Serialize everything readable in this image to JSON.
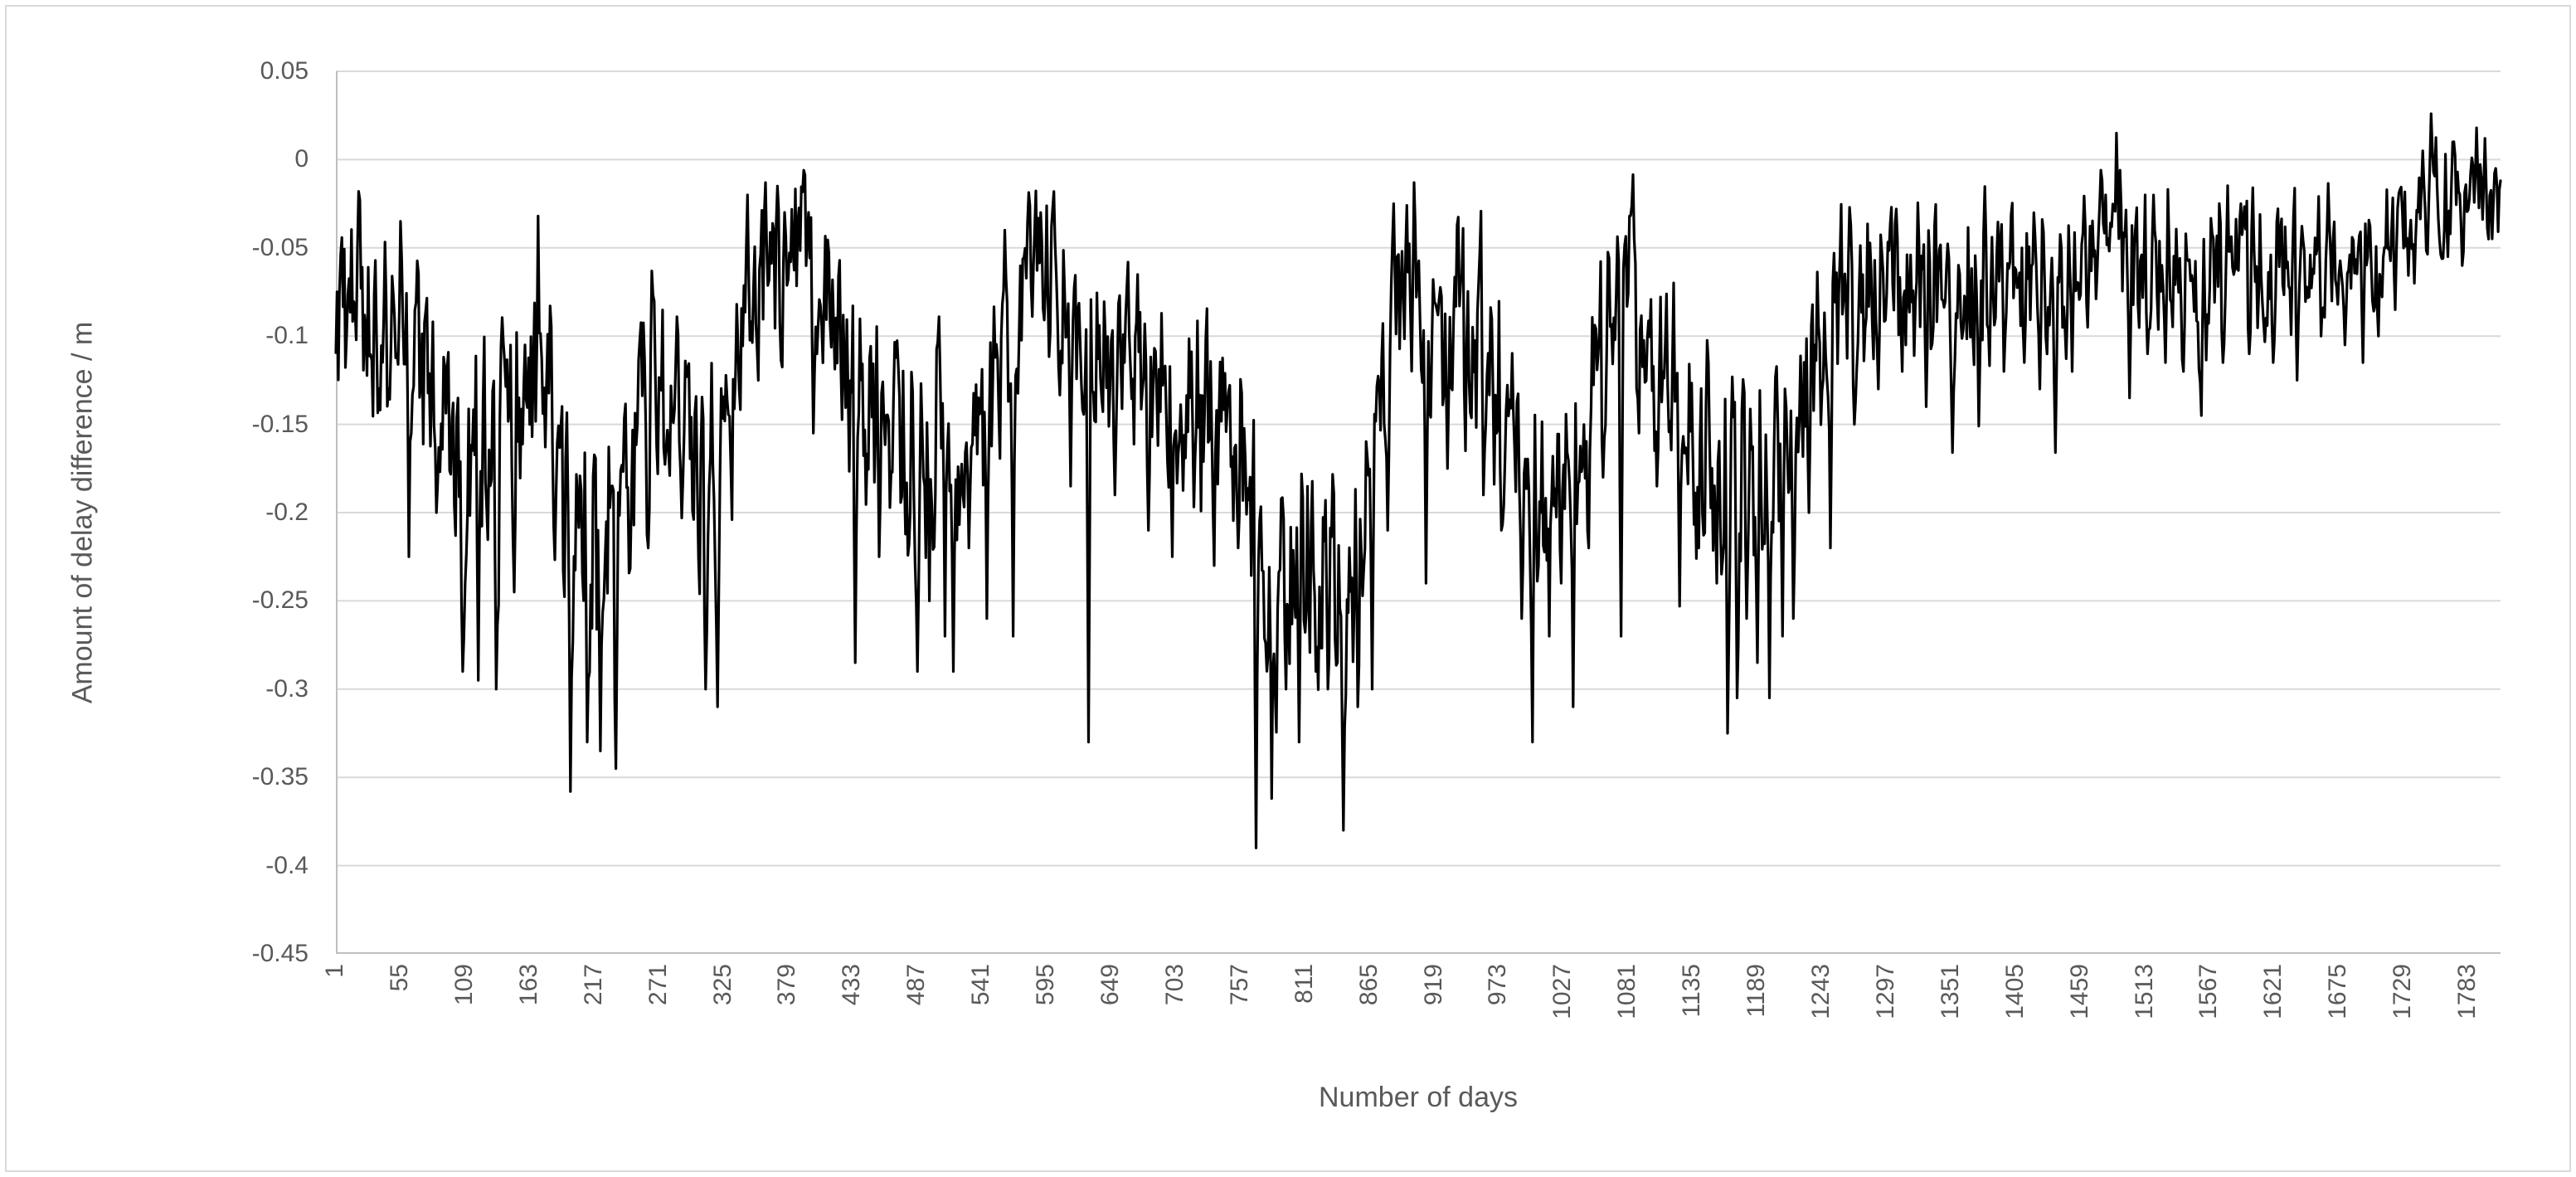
{
  "chart": {
    "y_axis": {
      "title": "Amount of delay difference / m",
      "tick_labels": [
        "0.05",
        "0",
        "-0.05",
        "-0.1",
        "-0.15",
        "-0.2",
        "-0.25",
        "-0.3",
        "-0.35",
        "-0.4",
        "-0.45"
      ],
      "tick_values": [
        0.05,
        0,
        -0.05,
        -0.1,
        -0.15,
        -0.2,
        -0.25,
        -0.3,
        -0.35,
        -0.4,
        -0.45
      ],
      "max": 0.05,
      "min": -0.45
    },
    "x_axis": {
      "title": "Number of days",
      "tick_labels": [
        "1",
        "55",
        "109",
        "163",
        "217",
        "271",
        "325",
        "379",
        "433",
        "487",
        "541",
        "595",
        "649",
        "703",
        "757",
        "811",
        "865",
        "919",
        "973",
        "1027",
        "1081",
        "1135",
        "1189",
        "1243",
        "1297",
        "1351",
        "1405",
        "1459",
        "1513",
        "1567",
        "1621",
        "1675",
        "1729",
        "1783"
      ],
      "tick_start": 1,
      "tick_step": 54
    },
    "style": {
      "series_color": "#000000",
      "gridline_color": "#d9d9d9",
      "axis_line_color": "#bfbfbf",
      "tick_text_color": "#595959",
      "frame_border_color": "#d9d9d9",
      "background": "#ffffff"
    }
  },
  "chart_data": {
    "type": "line",
    "title": "",
    "xlabel": "Number of days",
    "ylabel": "Amount of delay difference / m",
    "x_range": [
      1,
      1810
    ],
    "ylim": [
      -0.45,
      0.05
    ],
    "grid": true,
    "legend": false,
    "n_points": 1810,
    "noise_seed": 9,
    "trend_keypoints": [
      [
        1,
        -0.085
      ],
      [
        25,
        -0.09
      ],
      [
        50,
        -0.11
      ],
      [
        70,
        -0.13
      ],
      [
        90,
        -0.145
      ],
      [
        110,
        -0.175
      ],
      [
        135,
        -0.18
      ],
      [
        150,
        -0.15
      ],
      [
        165,
        -0.115
      ],
      [
        180,
        -0.14
      ],
      [
        195,
        -0.21
      ],
      [
        215,
        -0.225
      ],
      [
        235,
        -0.21
      ],
      [
        250,
        -0.17
      ],
      [
        265,
        -0.125
      ],
      [
        285,
        -0.135
      ],
      [
        300,
        -0.185
      ],
      [
        318,
        -0.175
      ],
      [
        332,
        -0.14
      ],
      [
        345,
        -0.09
      ],
      [
        365,
        -0.065
      ],
      [
        385,
        -0.06
      ],
      [
        405,
        -0.07
      ],
      [
        425,
        -0.1
      ],
      [
        440,
        -0.13
      ],
      [
        460,
        -0.155
      ],
      [
        480,
        -0.175
      ],
      [
        500,
        -0.155
      ],
      [
        518,
        -0.165
      ],
      [
        538,
        -0.15
      ],
      [
        558,
        -0.11
      ],
      [
        578,
        -0.075
      ],
      [
        598,
        -0.065
      ],
      [
        614,
        -0.085
      ],
      [
        630,
        -0.115
      ],
      [
        645,
        -0.1
      ],
      [
        665,
        -0.115
      ],
      [
        685,
        -0.12
      ],
      [
        705,
        -0.125
      ],
      [
        725,
        -0.145
      ],
      [
        745,
        -0.14
      ],
      [
        762,
        -0.165
      ],
      [
        778,
        -0.23
      ],
      [
        795,
        -0.245
      ],
      [
        812,
        -0.225
      ],
      [
        828,
        -0.235
      ],
      [
        845,
        -0.25
      ],
      [
        858,
        -0.21
      ],
      [
        870,
        -0.155
      ],
      [
        882,
        -0.105
      ],
      [
        895,
        -0.075
      ],
      [
        905,
        -0.085
      ],
      [
        915,
        -0.11
      ],
      [
        928,
        -0.095
      ],
      [
        940,
        -0.082
      ],
      [
        955,
        -0.1
      ],
      [
        970,
        -0.13
      ],
      [
        985,
        -0.155
      ],
      [
        1000,
        -0.185
      ],
      [
        1018,
        -0.165
      ],
      [
        1035,
        -0.175
      ],
      [
        1052,
        -0.12
      ],
      [
        1068,
        -0.095
      ],
      [
        1082,
        -0.075
      ],
      [
        1098,
        -0.1
      ],
      [
        1112,
        -0.12
      ],
      [
        1128,
        -0.14
      ],
      [
        1145,
        -0.165
      ],
      [
        1160,
        -0.185
      ],
      [
        1175,
        -0.185
      ],
      [
        1190,
        -0.17
      ],
      [
        1203,
        -0.185
      ],
      [
        1217,
        -0.155
      ],
      [
        1230,
        -0.115
      ],
      [
        1245,
        -0.09
      ],
      [
        1262,
        -0.08
      ],
      [
        1285,
        -0.072
      ],
      [
        1305,
        -0.065
      ],
      [
        1325,
        -0.07
      ],
      [
        1345,
        -0.078
      ],
      [
        1362,
        -0.068
      ],
      [
        1380,
        -0.07
      ],
      [
        1398,
        -0.058
      ],
      [
        1415,
        -0.055
      ],
      [
        1430,
        -0.065
      ],
      [
        1445,
        -0.075
      ],
      [
        1460,
        -0.048
      ],
      [
        1475,
        -0.038
      ],
      [
        1490,
        -0.04
      ],
      [
        1505,
        -0.06
      ],
      [
        1522,
        -0.055
      ],
      [
        1540,
        -0.06
      ],
      [
        1558,
        -0.072
      ],
      [
        1575,
        -0.06
      ],
      [
        1595,
        -0.055
      ],
      [
        1615,
        -0.06
      ],
      [
        1635,
        -0.063
      ],
      [
        1655,
        -0.05
      ],
      [
        1675,
        -0.053
      ],
      [
        1695,
        -0.058
      ],
      [
        1712,
        -0.047
      ],
      [
        1728,
        -0.038
      ],
      [
        1742,
        -0.025
      ],
      [
        1755,
        -0.018
      ],
      [
        1768,
        -0.022
      ],
      [
        1780,
        -0.024
      ],
      [
        1792,
        -0.016
      ],
      [
        1802,
        -0.018
      ],
      [
        1810,
        -0.014
      ]
    ],
    "noise_amplitude_keypoints": [
      [
        1,
        0.052
      ],
      [
        100,
        0.06
      ],
      [
        200,
        0.068
      ],
      [
        300,
        0.06
      ],
      [
        360,
        0.045
      ],
      [
        480,
        0.062
      ],
      [
        600,
        0.042
      ],
      [
        700,
        0.05
      ],
      [
        800,
        0.07
      ],
      [
        900,
        0.048
      ],
      [
        1000,
        0.062
      ],
      [
        1080,
        0.05
      ],
      [
        1160,
        0.06
      ],
      [
        1230,
        0.05
      ],
      [
        1300,
        0.042
      ],
      [
        1450,
        0.042
      ],
      [
        1560,
        0.038
      ],
      [
        1650,
        0.035
      ],
      [
        1730,
        0.032
      ],
      [
        1810,
        0.026
      ]
    ],
    "extreme_points": [
      [
        20,
        -0.018
      ],
      [
        55,
        -0.035
      ],
      [
        62,
        -0.225
      ],
      [
        85,
        -0.2
      ],
      [
        107,
        -0.29
      ],
      [
        120,
        -0.295
      ],
      [
        135,
        -0.3
      ],
      [
        150,
        -0.245
      ],
      [
        170,
        -0.032
      ],
      [
        197,
        -0.358
      ],
      [
        211,
        -0.33
      ],
      [
        222,
        -0.335
      ],
      [
        235,
        -0.345
      ],
      [
        262,
        -0.22
      ],
      [
        310,
        -0.3
      ],
      [
        320,
        -0.31
      ],
      [
        345,
        -0.02
      ],
      [
        360,
        -0.013
      ],
      [
        370,
        -0.015
      ],
      [
        400,
        -0.155
      ],
      [
        435,
        -0.285
      ],
      [
        455,
        -0.225
      ],
      [
        487,
        -0.29
      ],
      [
        497,
        -0.25
      ],
      [
        510,
        -0.27
      ],
      [
        517,
        -0.29
      ],
      [
        530,
        -0.22
      ],
      [
        545,
        -0.26
      ],
      [
        560,
        -0.04
      ],
      [
        567,
        -0.27
      ],
      [
        590,
        -0.03
      ],
      [
        600,
        -0.028
      ],
      [
        615,
        -0.185
      ],
      [
        630,
        -0.33
      ],
      [
        652,
        -0.19
      ],
      [
        680,
        -0.21
      ],
      [
        700,
        -0.225
      ],
      [
        735,
        -0.23
      ],
      [
        755,
        -0.22
      ],
      [
        770,
        -0.39
      ],
      [
        783,
        -0.362
      ],
      [
        795,
        -0.3
      ],
      [
        806,
        -0.33
      ],
      [
        820,
        -0.29
      ],
      [
        830,
        -0.3
      ],
      [
        843,
        -0.38
      ],
      [
        855,
        -0.31
      ],
      [
        867,
        -0.3
      ],
      [
        880,
        -0.21
      ],
      [
        885,
        -0.025
      ],
      [
        902,
        -0.013
      ],
      [
        912,
        -0.24
      ],
      [
        930,
        -0.175
      ],
      [
        945,
        -0.165
      ],
      [
        960,
        -0.19
      ],
      [
        975,
        -0.21
      ],
      [
        992,
        -0.26
      ],
      [
        1001,
        -0.33
      ],
      [
        1015,
        -0.27
      ],
      [
        1025,
        -0.24
      ],
      [
        1035,
        -0.31
      ],
      [
        1048,
        -0.22
      ],
      [
        1060,
        -0.18
      ],
      [
        1075,
        -0.27
      ],
      [
        1082,
        -0.032
      ],
      [
        1090,
        -0.155
      ],
      [
        1105,
        -0.185
      ],
      [
        1124,
        -0.253
      ],
      [
        1140,
        -0.22
      ],
      [
        1155,
        -0.24
      ],
      [
        1164,
        -0.325
      ],
      [
        1172,
        -0.305
      ],
      [
        1180,
        -0.26
      ],
      [
        1189,
        -0.285
      ],
      [
        1199,
        -0.305
      ],
      [
        1210,
        -0.27
      ],
      [
        1219,
        -0.26
      ],
      [
        1232,
        -0.2
      ],
      [
        1250,
        -0.22
      ],
      [
        1270,
        -0.15
      ],
      [
        1290,
        -0.13
      ],
      [
        1305,
        -0.028
      ],
      [
        1310,
        -0.12
      ],
      [
        1330,
        -0.14
      ],
      [
        1352,
        -0.166
      ],
      [
        1374,
        -0.151
      ],
      [
        1395,
        -0.12
      ],
      [
        1412,
        -0.115
      ],
      [
        1425,
        -0.13
      ],
      [
        1438,
        -0.166
      ],
      [
        1452,
        -0.12
      ],
      [
        1465,
        -0.095
      ],
      [
        1480,
        -0.02
      ],
      [
        1489,
        0.015
      ],
      [
        1500,
        -0.135
      ],
      [
        1515,
        -0.11
      ],
      [
        1530,
        -0.115
      ],
      [
        1545,
        -0.12
      ],
      [
        1560,
        -0.145
      ],
      [
        1578,
        -0.115
      ],
      [
        1593,
        -0.025
      ],
      [
        1600,
        -0.11
      ],
      [
        1620,
        -0.115
      ],
      [
        1640,
        -0.125
      ],
      [
        1660,
        -0.1
      ],
      [
        1680,
        -0.105
      ],
      [
        1695,
        -0.115
      ],
      [
        1708,
        -0.1
      ],
      [
        1722,
        -0.085
      ],
      [
        1738,
        -0.07
      ],
      [
        1745,
        0.005
      ],
      [
        1752,
        0.026
      ],
      [
        1766,
        -0.055
      ],
      [
        1770,
        0.01
      ],
      [
        1778,
        -0.06
      ],
      [
        1790,
        0.018
      ],
      [
        1797,
        0.012
      ],
      [
        1800,
        -0.045
      ],
      [
        1806,
        -0.005
      ],
      [
        1810,
        -0.012
      ]
    ]
  }
}
